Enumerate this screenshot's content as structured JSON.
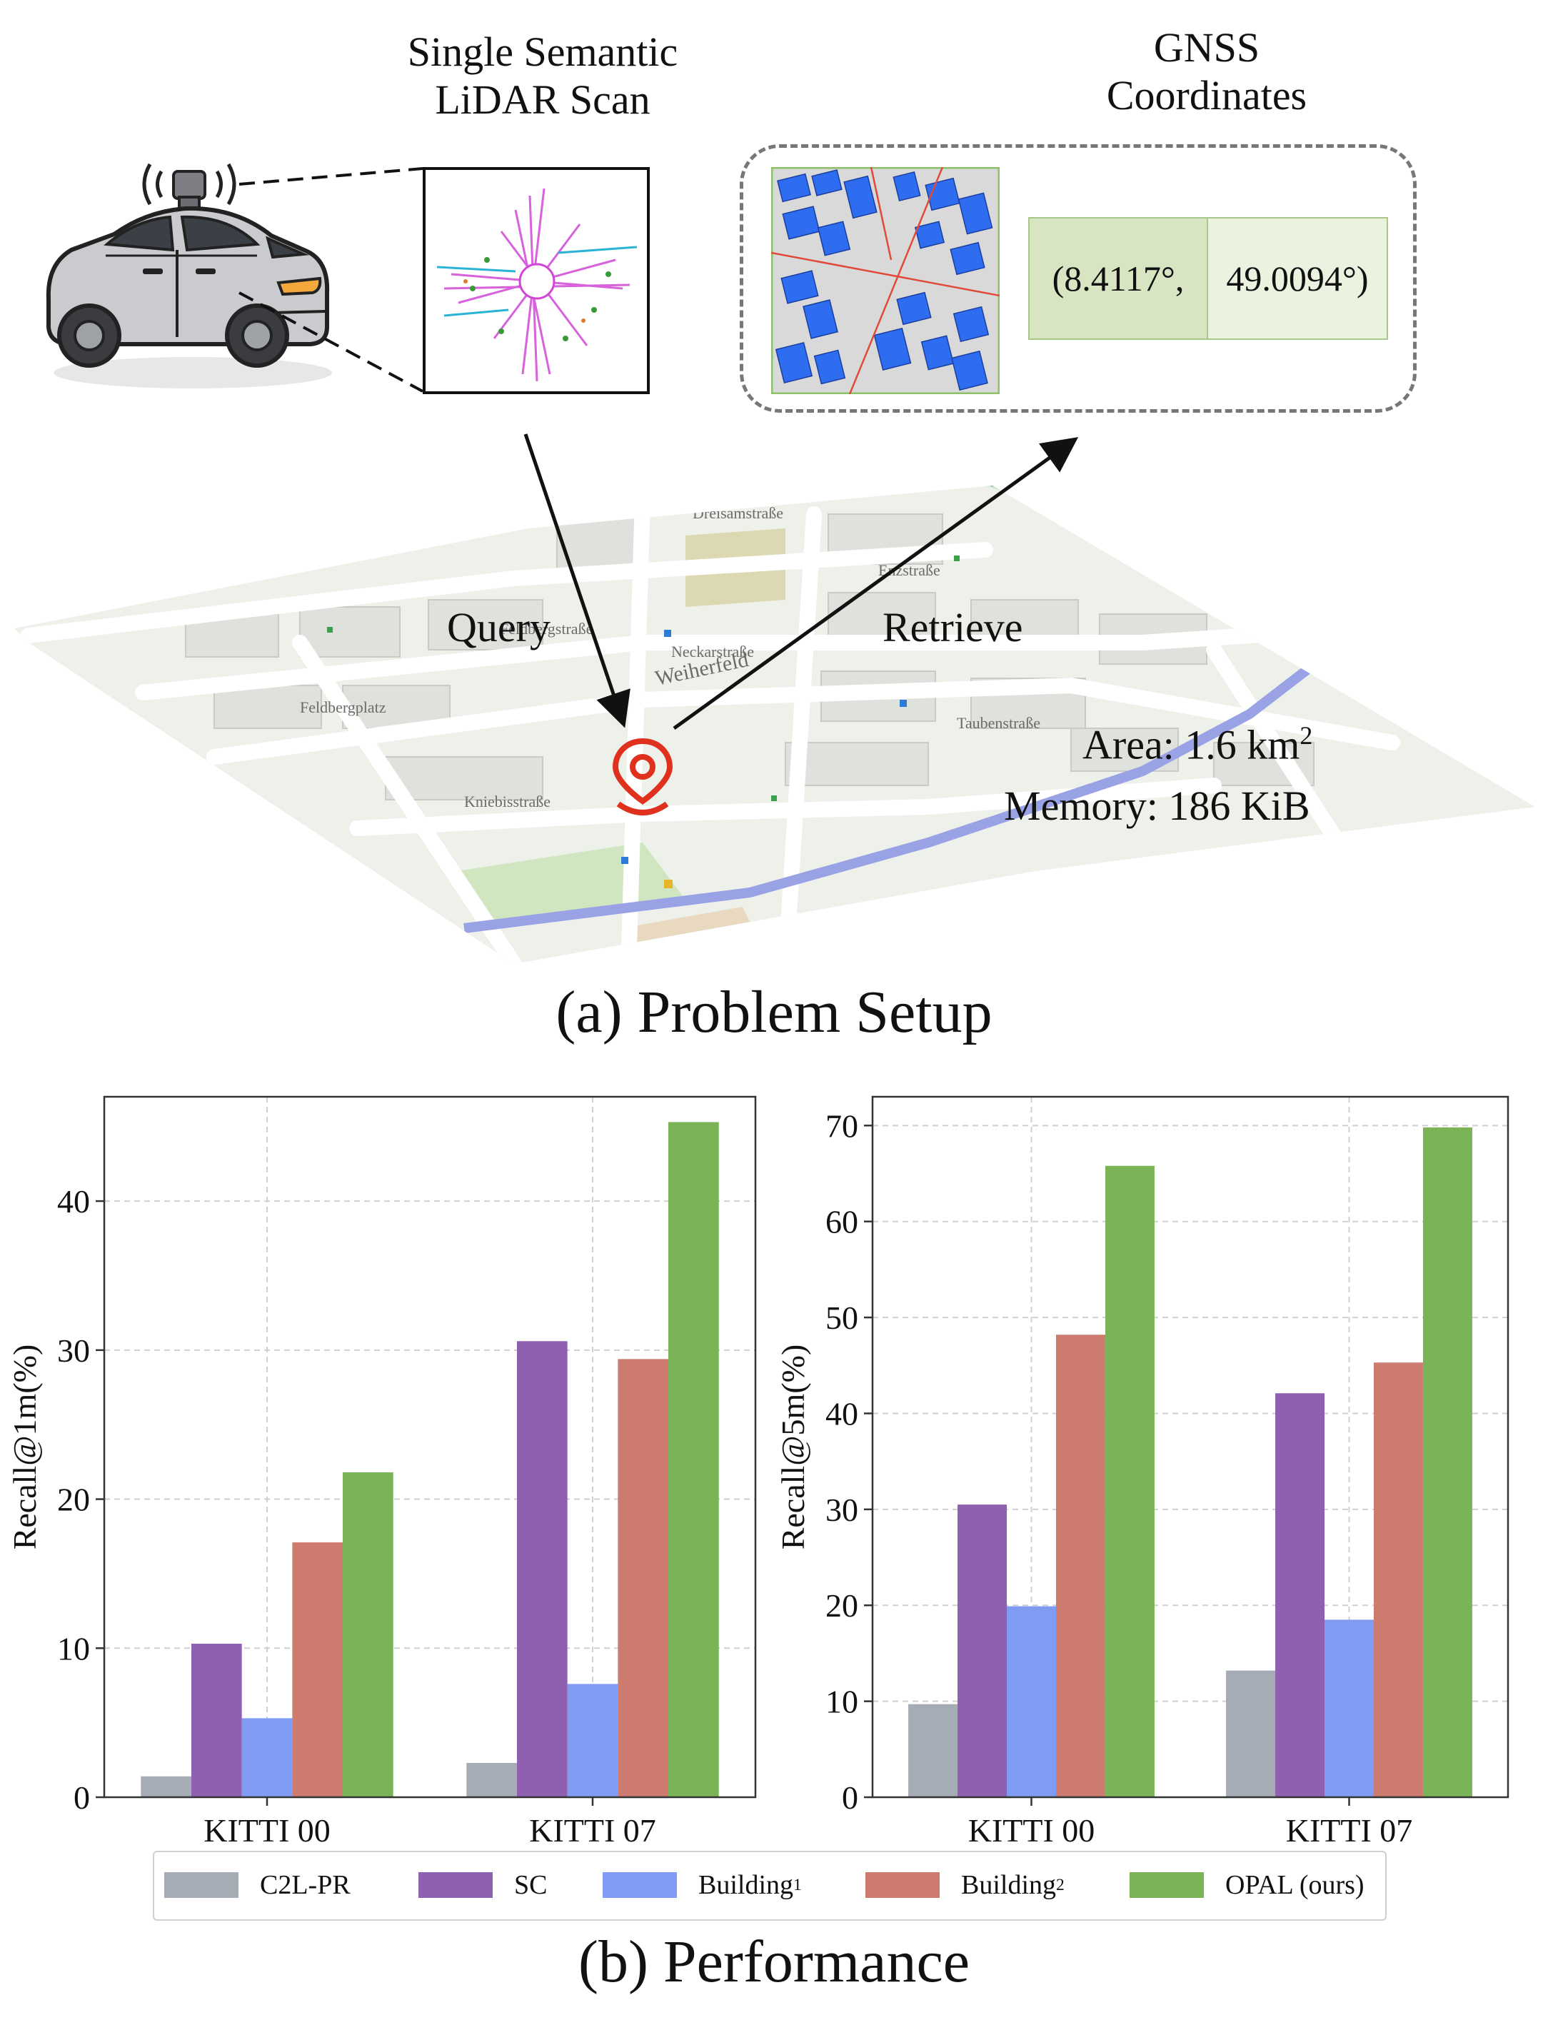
{
  "panel_a": {
    "scan_label_line1": "Single Semantic",
    "scan_label_line2": "LiDAR Scan",
    "gnss_label_line1": "GNSS",
    "gnss_label_line2": "Coordinates",
    "coord_lon": "(8.4117°,",
    "coord_lat": "49.0094°)",
    "query_label": "Query",
    "retrieve_label": "Retrieve",
    "area_prefix": "Area: 1.6 km",
    "area_sup": "2",
    "memory_text": "Memory: 186 KiB",
    "map_street_1": "Dreisamstraße",
    "map_street_2": "Enzstraße",
    "map_street_3": "Feldbergstraße",
    "map_street_4": "Feldbergplatz",
    "map_street_5": "Kniebisstraße",
    "map_street_6": "Weiherfeld",
    "map_street_7": "Neckarstraße",
    "map_street_8": "Taubenstraße",
    "caption": "(a) Problem Setup"
  },
  "panel_b": {
    "caption": "(b) Performance",
    "legend": [
      {
        "label": "C2L-PR",
        "sup": ""
      },
      {
        "label": "SC",
        "sup": ""
      },
      {
        "label": "Building",
        "sup": "1"
      },
      {
        "label": "Building",
        "sup": "2"
      },
      {
        "label": "OPAL (ours)",
        "sup": ""
      }
    ],
    "colors": [
      "#a6acb5",
      "#8f5fb0",
      "#7f9cf2",
      "#cd7b6f",
      "#7ab456"
    ]
  },
  "chart_data": [
    {
      "type": "bar",
      "ylabel": "Recall@1m(%)",
      "categories": [
        "KITTI 00",
        "KITTI 07"
      ],
      "ylim": [
        0,
        47
      ],
      "yticks": [
        0,
        10,
        20,
        30,
        40
      ],
      "grid": true,
      "series": [
        {
          "name": "C2L-PR",
          "values": [
            1.4,
            2.3
          ]
        },
        {
          "name": "SC",
          "values": [
            10.3,
            30.6
          ]
        },
        {
          "name": "Building1",
          "values": [
            5.3,
            7.6
          ]
        },
        {
          "name": "Building2",
          "values": [
            17.1,
            29.4
          ]
        },
        {
          "name": "OPAL (ours)",
          "values": [
            21.8,
            45.3
          ]
        }
      ]
    },
    {
      "type": "bar",
      "ylabel": "Recall@5m(%)",
      "categories": [
        "KITTI 00",
        "KITTI 07"
      ],
      "ylim": [
        0,
        73
      ],
      "yticks": [
        0,
        10,
        20,
        30,
        40,
        50,
        60,
        70
      ],
      "grid": true,
      "series": [
        {
          "name": "C2L-PR",
          "values": [
            9.7,
            13.2
          ]
        },
        {
          "name": "SC",
          "values": [
            30.5,
            42.1
          ]
        },
        {
          "name": "Building1",
          "values": [
            19.9,
            18.5
          ]
        },
        {
          "name": "Building2",
          "values": [
            48.2,
            45.3
          ]
        },
        {
          "name": "OPAL (ours)",
          "values": [
            65.8,
            69.8
          ]
        }
      ]
    }
  ]
}
